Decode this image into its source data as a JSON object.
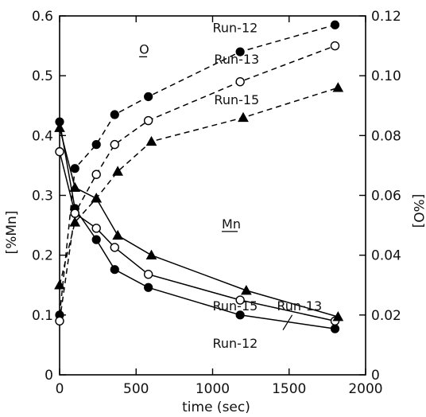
{
  "chart_data": {
    "type": "line",
    "xlabel": "time (sec)",
    "ylabel_left": "[%Mn]",
    "ylabel_right": "[%O]",
    "xlim": [
      0,
      2000
    ],
    "ylim_left": [
      0,
      0.6
    ],
    "ylim_right": [
      0,
      0.12
    ],
    "x_ticks": [
      "0",
      "500",
      "1000",
      "1500",
      "2000"
    ],
    "y_left_ticks": [
      "0",
      "0.1",
      "0.2",
      "0.3",
      "0.4",
      "0.5",
      "0.6"
    ],
    "y_right_ticks": [
      "0",
      "0.02",
      "0.04",
      "0.06",
      "0.08",
      "0.10",
      "0.12"
    ],
    "grid": false,
    "legend": "none",
    "series": [
      {
        "name": "Run-12",
        "element": "O",
        "axis": "right",
        "marker": "filled-circle",
        "style": "dashed",
        "x": [
          0,
          100,
          240,
          360,
          580,
          1180,
          1800
        ],
        "y": [
          0.02,
          0.069,
          0.077,
          0.087,
          0.093,
          0.108,
          0.117
        ]
      },
      {
        "name": "Run-13",
        "element": "O",
        "axis": "right",
        "marker": "open-circle",
        "style": "dashed",
        "x": [
          0,
          100,
          240,
          360,
          580,
          1180,
          1800
        ],
        "y": [
          0.018,
          0.054,
          0.067,
          0.077,
          0.085,
          0.098,
          0.11
        ]
      },
      {
        "name": "Run-15",
        "element": "O",
        "axis": "right",
        "marker": "filled-triangle",
        "style": "dashed",
        "x": [
          0,
          100,
          240,
          380,
          600,
          1200,
          1820
        ],
        "y": [
          0.03,
          0.051,
          0.059,
          0.068,
          0.078,
          0.086,
          0.096
        ]
      },
      {
        "name": "Run-12",
        "element": "Mn",
        "axis": "left",
        "marker": "filled-circle",
        "style": "solid",
        "x": [
          0,
          100,
          240,
          360,
          580,
          1180,
          1800
        ],
        "y": [
          0.423,
          0.278,
          0.226,
          0.176,
          0.146,
          0.1,
          0.077
        ]
      },
      {
        "name": "Run-13",
        "element": "Mn",
        "axis": "left",
        "marker": "open-circle",
        "style": "solid",
        "x": [
          0,
          100,
          240,
          360,
          580,
          1180,
          1800
        ],
        "y": [
          0.373,
          0.27,
          0.245,
          0.213,
          0.168,
          0.125,
          0.09
        ]
      },
      {
        "name": "Run-15",
        "element": "Mn",
        "axis": "left",
        "marker": "filled-triangle",
        "style": "solid",
        "x": [
          0,
          100,
          240,
          380,
          600,
          1220,
          1820
        ],
        "y": [
          0.413,
          0.313,
          0.295,
          0.233,
          0.2,
          0.141,
          0.097
        ]
      }
    ],
    "annotations": [
      {
        "text": "O",
        "x": 520,
        "y_left": 0.537,
        "underline": true
      },
      {
        "text": "Mn",
        "x": 1060,
        "y_left": 0.245,
        "underline": true
      },
      {
        "text": "Run-12",
        "x": 1000,
        "y_left": 0.573
      },
      {
        "text": "Run-13",
        "x": 1010,
        "y_left": 0.52
      },
      {
        "text": "Run-15",
        "x": 1010,
        "y_left": 0.452
      },
      {
        "text": "Run-15",
        "x": 1000,
        "y_left": 0.108
      },
      {
        "text": "Run-13",
        "x": 1420,
        "y_left": 0.108
      },
      {
        "text": "Run-12",
        "x": 1000,
        "y_left": 0.045
      }
    ]
  }
}
